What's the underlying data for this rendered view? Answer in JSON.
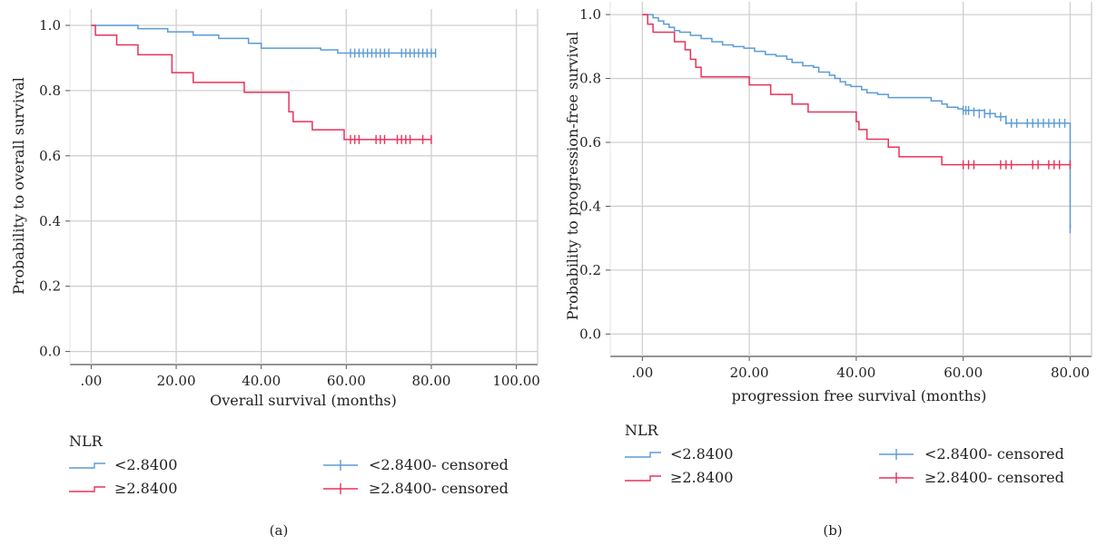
{
  "colors": {
    "low": "#5b9bd5",
    "high": "#e8325a",
    "grid": "#d0d0d0",
    "axis": "#555555"
  },
  "chart_data": [
    {
      "type": "line",
      "subtype": "kaplan-meier-step",
      "caption": "(a)",
      "xlabel": "Overall survival (months)",
      "ylabel": "Probability to overall survival",
      "xlim": [
        -5,
        105
      ],
      "ylim": [
        -0.04,
        1.05
      ],
      "xticks": [
        0,
        20,
        40,
        60,
        80,
        100
      ],
      "xtick_labels": [
        ".00",
        "20.00",
        "40.00",
        "60.00",
        "80.00",
        "100.00"
      ],
      "yticks": [
        0,
        0.2,
        0.4,
        0.6,
        0.8,
        1.0
      ],
      "ytick_labels": [
        "0.0",
        "0.2",
        "0.4",
        "0.6",
        "0.8",
        "1.0"
      ],
      "grid": true,
      "legend": {
        "title": "NLR",
        "placement": "bottom",
        "entries": [
          "<2.8400",
          "≥2.8400",
          "<2.8400- censored",
          "≥2.8400- censored"
        ]
      },
      "series": [
        {
          "name": "<2.8400",
          "color_key": "low",
          "steps": [
            [
              0,
              1.0
            ],
            [
              11,
              0.99
            ],
            [
              18,
              0.98
            ],
            [
              24,
              0.97
            ],
            [
              30,
              0.96
            ],
            [
              37,
              0.945
            ],
            [
              40,
              0.93
            ],
            [
              54,
              0.925
            ],
            [
              58,
              0.915
            ],
            [
              81,
              0.915
            ]
          ],
          "censored": [
            61,
            62,
            63,
            64,
            65,
            66,
            67,
            68,
            69,
            70,
            73,
            74,
            75,
            76,
            77,
            78,
            79,
            80,
            81
          ],
          "censored_y": 0.915
        },
        {
          "name": "≥2.8400",
          "color_key": "high",
          "steps": [
            [
              0,
              1.0
            ],
            [
              1,
              0.97
            ],
            [
              6,
              0.94
            ],
            [
              11,
              0.91
            ],
            [
              19,
              0.855
            ],
            [
              24,
              0.825
            ],
            [
              36,
              0.795
            ],
            [
              46.5,
              0.735
            ],
            [
              47.5,
              0.705
            ],
            [
              52,
              0.68
            ],
            [
              59.5,
              0.65
            ],
            [
              80,
              0.65
            ]
          ],
          "censored": [
            61,
            62,
            63,
            67,
            68,
            69,
            72,
            73,
            74,
            75,
            78,
            80
          ],
          "censored_y": 0.65
        }
      ]
    },
    {
      "type": "line",
      "subtype": "kaplan-meier-step",
      "caption": "(b)",
      "xlabel": "progression free survival (months)",
      "ylabel": "Probability to progression-free survival",
      "xlim": [
        -6,
        84
      ],
      "ylim": [
        -0.07,
        1.04
      ],
      "xticks": [
        0,
        20,
        40,
        60,
        80
      ],
      "xtick_labels": [
        ".00",
        "20.00",
        "40.00",
        "60.00",
        "80.00"
      ],
      "yticks": [
        0,
        0.2,
        0.4,
        0.6,
        0.8,
        1.0
      ],
      "ytick_labels": [
        "0.0",
        "0.2",
        "0.4",
        "0.6",
        "0.8",
        "1.0"
      ],
      "grid": true,
      "legend": {
        "title": "NLR",
        "placement": "bottom",
        "entries": [
          "<2.8400",
          "≥2.8400",
          "<2.8400- censored",
          "≥2.8400- censored"
        ]
      },
      "series": [
        {
          "name": "<2.8400",
          "color_key": "low",
          "steps": [
            [
              0,
              1.0
            ],
            [
              2,
              0.99
            ],
            [
              3,
              0.98
            ],
            [
              4,
              0.97
            ],
            [
              5,
              0.96
            ],
            [
              6,
              0.95
            ],
            [
              7,
              0.945
            ],
            [
              9,
              0.935
            ],
            [
              11,
              0.925
            ],
            [
              13,
              0.915
            ],
            [
              15,
              0.905
            ],
            [
              17,
              0.9
            ],
            [
              19,
              0.895
            ],
            [
              21,
              0.885
            ],
            [
              23,
              0.875
            ],
            [
              25,
              0.87
            ],
            [
              27,
              0.86
            ],
            [
              28,
              0.85
            ],
            [
              30,
              0.84
            ],
            [
              32,
              0.835
            ],
            [
              33,
              0.82
            ],
            [
              35,
              0.81
            ],
            [
              36,
              0.8
            ],
            [
              37,
              0.79
            ],
            [
              38,
              0.78
            ],
            [
              39,
              0.775
            ],
            [
              41,
              0.765
            ],
            [
              42,
              0.755
            ],
            [
              44,
              0.75
            ],
            [
              46,
              0.74
            ],
            [
              54,
              0.73
            ],
            [
              56,
              0.72
            ],
            [
              57,
              0.71
            ],
            [
              59,
              0.705
            ],
            [
              60,
              0.7
            ],
            [
              64,
              0.69
            ],
            [
              66,
              0.68
            ],
            [
              68,
              0.66
            ],
            [
              80,
              0.66
            ],
            [
              80,
              0.33
            ]
          ],
          "censored": [
            60,
            60.5,
            61,
            62,
            63,
            64,
            65,
            67,
            68,
            69,
            70,
            72,
            73,
            74,
            75,
            76,
            77,
            78,
            79,
            80
          ],
          "censored_y": [
            0.7,
            0.7,
            0.7,
            0.695,
            0.69,
            0.69,
            0.69,
            0.68,
            0.67,
            0.66,
            0.66,
            0.66,
            0.66,
            0.66,
            0.66,
            0.66,
            0.66,
            0.66,
            0.66,
            0.33
          ]
        },
        {
          "name": "≥2.8400",
          "color_key": "high",
          "steps": [
            [
              0,
              1.0
            ],
            [
              1,
              0.97
            ],
            [
              2,
              0.945
            ],
            [
              6,
              0.915
            ],
            [
              8,
              0.89
            ],
            [
              9,
              0.86
            ],
            [
              10,
              0.835
            ],
            [
              11,
              0.805
            ],
            [
              20,
              0.78
            ],
            [
              24,
              0.75
            ],
            [
              28,
              0.72
            ],
            [
              31,
              0.695
            ],
            [
              40,
              0.665
            ],
            [
              40.5,
              0.64
            ],
            [
              42,
              0.61
            ],
            [
              46,
              0.585
            ],
            [
              48,
              0.555
            ],
            [
              56,
              0.53
            ],
            [
              80,
              0.53
            ]
          ],
          "censored": [
            60,
            61,
            62,
            67,
            68,
            69,
            73,
            74,
            76,
            77,
            78,
            80
          ],
          "censored_y": 0.53
        }
      ]
    }
  ]
}
